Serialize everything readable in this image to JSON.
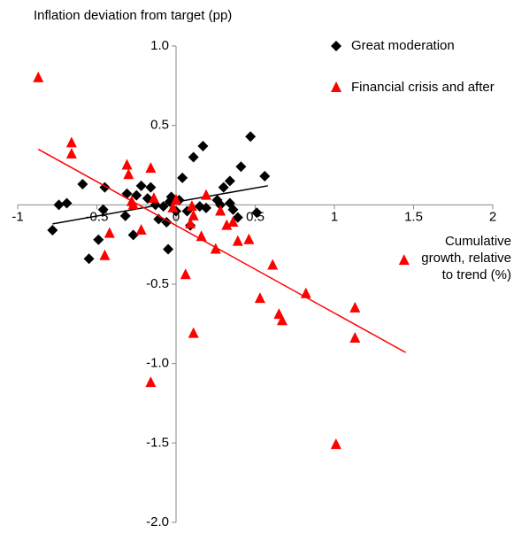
{
  "chart_data": {
    "type": "scatter",
    "y_label": "Inflation deviation from target (pp)",
    "x_label": "Cumulative growth, relative to trend (%)",
    "xlim": [
      -1,
      2
    ],
    "ylim": [
      -2,
      1
    ],
    "xticks": [
      -1,
      -0.5,
      0,
      0.5,
      1,
      1.5,
      2
    ],
    "yticks": [
      {
        "value": 1,
        "label": "1.0"
      },
      {
        "value": 0.5,
        "label": "0.5"
      },
      {
        "value": -0.5,
        "label": "-0.5"
      },
      {
        "value": -1,
        "label": "-1.0"
      },
      {
        "value": -1.5,
        "label": "-1.5"
      },
      {
        "value": -2,
        "label": "-2.0"
      }
    ],
    "legend": "top-right",
    "series": [
      {
        "name": "Great moderation",
        "color": "#000000",
        "marker": "diamond",
        "x": [
          -0.78,
          -0.74,
          -0.69,
          -0.59,
          -0.55,
          -0.49,
          -0.46,
          -0.45,
          -0.32,
          -0.31,
          -0.27,
          -0.25,
          -0.22,
          -0.18,
          -0.16,
          -0.13,
          -0.11,
          -0.08,
          -0.06,
          -0.04,
          -0.03,
          -0.05,
          0,
          0.02,
          0.04,
          0.07,
          0.09,
          0.11,
          0.15,
          0.17,
          0.19,
          0.26,
          0.28,
          0.3,
          0.34,
          0.34,
          0.36,
          0.39,
          0.41,
          0.47,
          0.51,
          0.56
        ],
        "values": [
          -0.16,
          0,
          0.01,
          0.13,
          -0.34,
          -0.22,
          -0.03,
          0.11,
          -0.07,
          0.07,
          -0.19,
          0.06,
          0.12,
          0.04,
          0.11,
          0,
          -0.09,
          -0.01,
          -0.11,
          0.02,
          0.05,
          -0.28,
          -0.04,
          0.03,
          0.17,
          -0.04,
          -0.13,
          0.3,
          -0.01,
          0.37,
          -0.02,
          0.03,
          0,
          0.11,
          0.15,
          0.01,
          -0.03,
          -0.08,
          0.24,
          0.43,
          -0.05,
          0.18
        ],
        "trendline": {
          "x": [
            -0.78,
            0.58
          ],
          "y": [
            -0.12,
            0.12
          ]
        }
      },
      {
        "name": "Financial crisis and after",
        "color": "#ff0000",
        "marker": "triangle",
        "x": [
          -0.87,
          -0.66,
          -0.66,
          -0.45,
          -0.42,
          -0.31,
          -0.3,
          -0.28,
          -0.27,
          -0.22,
          -0.16,
          -0.16,
          -0.14,
          -0.02,
          0,
          0.06,
          0.09,
          0.1,
          0.11,
          0.11,
          0.16,
          0.19,
          0.25,
          0.28,
          0.32,
          0.36,
          0.39,
          0.46,
          0.61,
          0.53,
          0.65,
          0.67,
          0.82,
          1.01,
          1.13,
          1.13,
          1.44
        ],
        "values": [
          0.8,
          0.39,
          0.32,
          -0.32,
          -0.18,
          0.25,
          0.19,
          0.02,
          0,
          -0.16,
          -1.12,
          0.23,
          0.04,
          -0.02,
          0.03,
          -0.44,
          -0.12,
          -0.01,
          -0.81,
          -0.07,
          -0.2,
          0.06,
          -0.28,
          -0.04,
          -0.13,
          -0.11,
          -0.23,
          -0.22,
          -0.38,
          -0.59,
          -0.69,
          -0.73,
          -0.56,
          -1.51,
          -0.84,
          -0.65,
          -0.35
        ],
        "trendline": {
          "x": [
            -0.87,
            1.45
          ],
          "y": [
            0.35,
            -0.93
          ]
        }
      }
    ]
  }
}
